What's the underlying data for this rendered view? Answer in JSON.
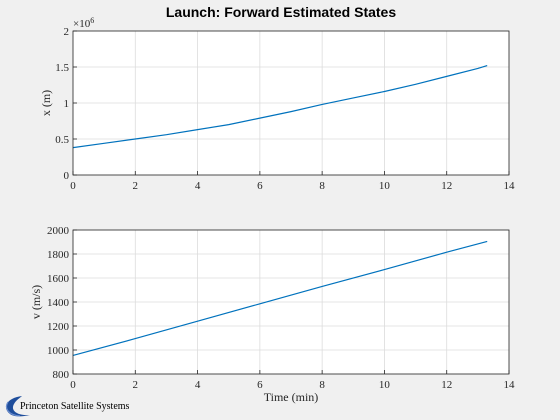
{
  "figure": {
    "title": "Launch: Forward Estimated States",
    "logo_text": "Princeton Satellite Systems",
    "background": "#f0f0f0",
    "axes_background": "#ffffff",
    "line_color": "#0072bd",
    "grid_color": "#dcdcdc"
  },
  "chart_data": [
    {
      "type": "line",
      "title": "Launch: Forward Estimated States",
      "xlabel": "",
      "ylabel": "x (m)",
      "y_exponent_label": "×10",
      "y_exponent_power": "6",
      "xlim": [
        0,
        14
      ],
      "ylim": [
        0,
        2
      ],
      "x_ticks": [
        0,
        2,
        4,
        6,
        8,
        10,
        12,
        14
      ],
      "y_ticks": [
        0,
        0.5,
        1,
        1.5,
        2
      ],
      "x_tick_labels": [
        "0",
        "2",
        "4",
        "6",
        "8",
        "10",
        "12",
        "14"
      ],
      "y_tick_labels": [
        "0",
        "0.5",
        "1",
        "1.5",
        "2"
      ],
      "grid": true,
      "series": [
        {
          "color": "#0072bd",
          "x": [
            0,
            1,
            2,
            3,
            4,
            5,
            6,
            7,
            8,
            9,
            10,
            11,
            12,
            13,
            13.3
          ],
          "y": [
            0.38,
            0.44,
            0.5,
            0.56,
            0.63,
            0.7,
            0.79,
            0.88,
            0.98,
            1.07,
            1.16,
            1.26,
            1.37,
            1.48,
            1.52
          ]
        }
      ]
    },
    {
      "type": "line",
      "title": "",
      "xlabel": "Time (min)",
      "ylabel": "v (m/s)",
      "xlim": [
        0,
        14
      ],
      "ylim": [
        800,
        2000
      ],
      "x_ticks": [
        0,
        2,
        4,
        6,
        8,
        10,
        12,
        14
      ],
      "y_ticks": [
        800,
        1000,
        1200,
        1400,
        1600,
        1800,
        2000
      ],
      "x_tick_labels": [
        "0",
        "2",
        "4",
        "6",
        "8",
        "10",
        "12",
        "14"
      ],
      "y_tick_labels": [
        "800",
        "1000",
        "1200",
        "1400",
        "1600",
        "1800",
        "2000"
      ],
      "grid": true,
      "series": [
        {
          "color": "#0072bd",
          "x": [
            0,
            2,
            4,
            6,
            8,
            10,
            12,
            13.3
          ],
          "y": [
            955,
            1095,
            1240,
            1385,
            1530,
            1670,
            1815,
            1905
          ]
        }
      ]
    }
  ]
}
